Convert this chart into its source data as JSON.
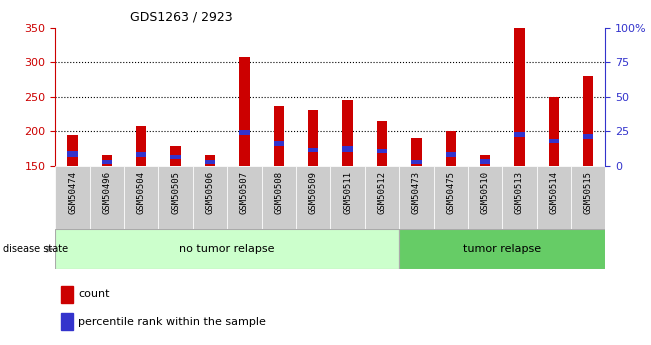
{
  "title": "GDS1263 / 2923",
  "categories": [
    "GSM50474",
    "GSM50496",
    "GSM50504",
    "GSM50505",
    "GSM50506",
    "GSM50507",
    "GSM50508",
    "GSM50509",
    "GSM50511",
    "GSM50512",
    "GSM50473",
    "GSM50475",
    "GSM50510",
    "GSM50513",
    "GSM50514",
    "GSM50515"
  ],
  "count_values": [
    195,
    165,
    208,
    178,
    165,
    308,
    236,
    230,
    245,
    214,
    190,
    200,
    165,
    350,
    250,
    280
  ],
  "percentile_values": [
    163,
    152,
    163,
    160,
    152,
    194,
    178,
    170,
    170,
    168,
    152,
    163,
    152,
    192,
    183,
    188
  ],
  "percentile_bar_heights": [
    8,
    6,
    6,
    6,
    6,
    8,
    8,
    6,
    8,
    6,
    6,
    6,
    8,
    6,
    6,
    8
  ],
  "ymin": 150,
  "ymax": 350,
  "yticks_left": [
    150,
    200,
    250,
    300,
    350
  ],
  "yticks_right": [
    0,
    25,
    50,
    75,
    100
  ],
  "ytick_labels_right": [
    "0",
    "25",
    "50",
    "75",
    "100%"
  ],
  "no_relapse_count": 10,
  "tumor_relapse_count": 6,
  "no_relapse_label": "no tumor relapse",
  "tumor_relapse_label": "tumor relapse",
  "disease_state_label": "disease state",
  "legend_count_label": "count",
  "legend_percentile_label": "percentile rank within the sample",
  "bar_color_red": "#cc0000",
  "bar_color_blue": "#3333cc",
  "no_relapse_bg": "#ccffcc",
  "tumor_relapse_bg": "#66cc66",
  "tick_bg": "#cccccc",
  "left_axis_color": "#cc0000",
  "right_axis_color": "#3333cc",
  "bar_width": 0.55
}
